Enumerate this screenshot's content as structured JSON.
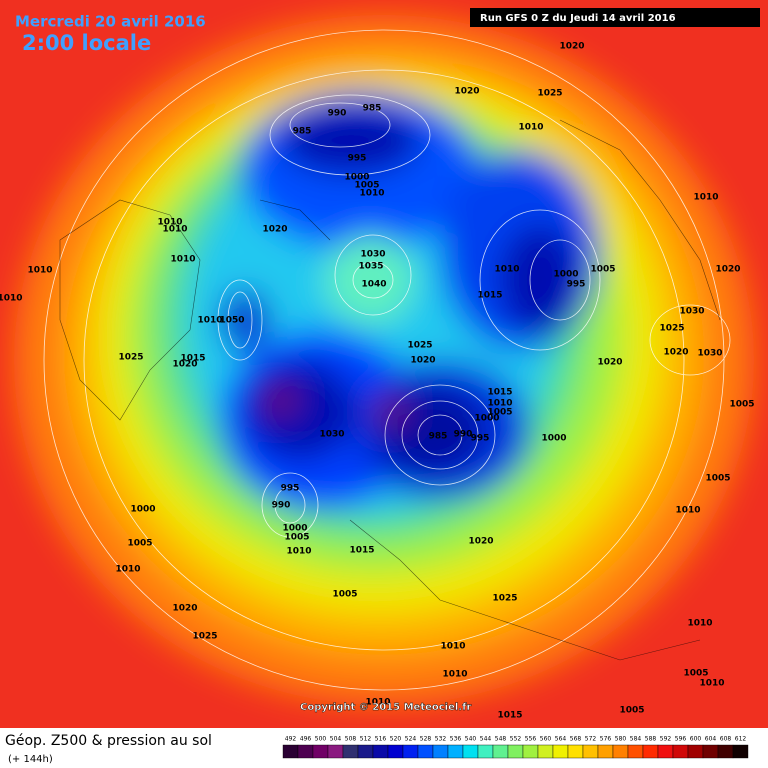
{
  "header": {
    "date": "Mercredi 20 avril 2016",
    "time": "2:00 locale",
    "run": "Run GFS 0 Z du Jeudi 14 avril 2016"
  },
  "copyright": "Copyright © 2015 Meteociel.fr",
  "footer": {
    "title": "Géop. Z500 & pression au sol",
    "lead": "(+ 144h)"
  },
  "colorbar": {
    "values": [
      492,
      496,
      500,
      504,
      508,
      512,
      516,
      520,
      524,
      528,
      532,
      536,
      540,
      544,
      548,
      552,
      556,
      560,
      564,
      568,
      572,
      576,
      580,
      584,
      588,
      592,
      596,
      600,
      604,
      608,
      612
    ],
    "colors": [
      "#2a0033",
      "#4d0050",
      "#700066",
      "#8a1a80",
      "#303070",
      "#1a1a8a",
      "#0a0aa8",
      "#0000d0",
      "#0020f0",
      "#0050ff",
      "#0080ff",
      "#00b0ff",
      "#00e0f0",
      "#40f0c0",
      "#60f090",
      "#80f060",
      "#a0f040",
      "#d0f020",
      "#f0f000",
      "#ffe000",
      "#ffc000",
      "#ffa000",
      "#ff8000",
      "#ff5000",
      "#ff2a00",
      "#f01010",
      "#d00808",
      "#a00000",
      "#700000",
      "#400000",
      "#100000"
    ]
  },
  "isobar_labels": [
    1020,
    1020,
    1025,
    985,
    990,
    985,
    1010,
    995,
    1000,
    1005,
    1010,
    1010,
    1010,
    1010,
    1020,
    1030,
    1035,
    1010,
    1010,
    1010,
    1000,
    1005,
    995,
    1020,
    1040,
    1015,
    1010,
    1030,
    1010,
    1050,
    1025,
    1025,
    1020,
    1030,
    1025,
    1015,
    1020,
    1020,
    1020,
    1015,
    1010,
    1005,
    1000,
    1005,
    985,
    990,
    995,
    1000,
    1030,
    995,
    990,
    1000,
    1005,
    1010,
    1000,
    1005,
    1010,
    1020,
    1005,
    1015,
    1010,
    1005,
    1025,
    1020,
    1025,
    1010,
    1010,
    1005,
    1010,
    1010,
    1015,
    1005,
    1010
  ]
}
